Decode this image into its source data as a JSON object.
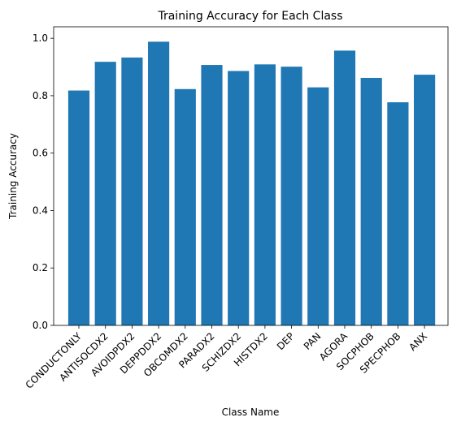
{
  "chart_data": {
    "type": "bar",
    "title": "Training Accuracy for Each Class",
    "xlabel": "Class Name",
    "ylabel": "Training Accuracy",
    "categories": [
      "CONDUCTONLY",
      "ANTISOCDX2",
      "AVOIDPDX2",
      "DEPPDDX2",
      "OBCOMDX2",
      "PARADX2",
      "SCHIZDX2",
      "HISTDX2",
      "DEP",
      "PAN",
      "AGORA",
      "SOCPHOB",
      "SPECPHOB",
      "ANX"
    ],
    "values": [
      0.818,
      0.918,
      0.933,
      0.988,
      0.823,
      0.907,
      0.886,
      0.909,
      0.901,
      0.829,
      0.957,
      0.862,
      0.777,
      0.873
    ],
    "ylim": [
      0,
      1.04
    ],
    "yticks": [
      0.0,
      0.2,
      0.4,
      0.6,
      0.8,
      1.0
    ],
    "ytick_labels": [
      "0.0",
      "0.2",
      "0.4",
      "0.6",
      "0.8",
      "1.0"
    ],
    "bar_color": "#1f77b4",
    "grid": false,
    "legend": "none"
  }
}
